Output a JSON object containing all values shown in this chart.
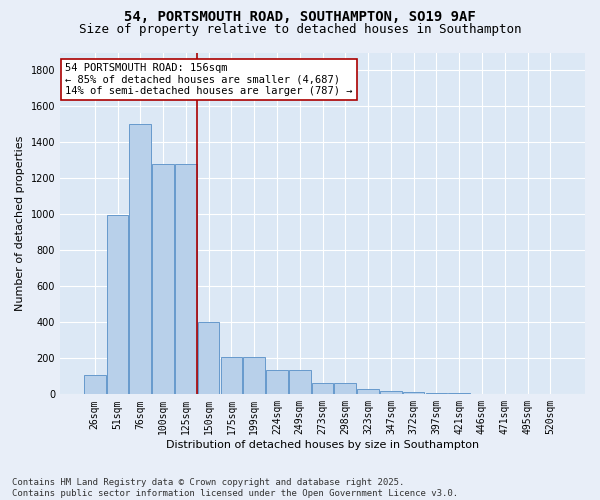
{
  "title_line1": "54, PORTSMOUTH ROAD, SOUTHAMPTON, SO19 9AF",
  "title_line2": "Size of property relative to detached houses in Southampton",
  "xlabel": "Distribution of detached houses by size in Southampton",
  "ylabel": "Number of detached properties",
  "categories": [
    "26sqm",
    "51sqm",
    "76sqm",
    "100sqm",
    "125sqm",
    "150sqm",
    "175sqm",
    "199sqm",
    "224sqm",
    "249sqm",
    "273sqm",
    "298sqm",
    "323sqm",
    "347sqm",
    "372sqm",
    "397sqm",
    "421sqm",
    "446sqm",
    "471sqm",
    "495sqm",
    "520sqm"
  ],
  "values": [
    105,
    995,
    1500,
    1280,
    1280,
    400,
    210,
    210,
    135,
    135,
    65,
    65,
    30,
    20,
    15,
    10,
    10,
    0,
    0,
    0,
    0
  ],
  "bar_color": "#b8d0ea",
  "bar_edge_color": "#6699cc",
  "highlight_bar_index": -1,
  "vline_position": 4.5,
  "vline_color": "#aa0000",
  "annotation_text": "54 PORTSMOUTH ROAD: 156sqm\n← 85% of detached houses are smaller (4,687)\n14% of semi-detached houses are larger (787) →",
  "annotation_box_color": "#ffffff",
  "annotation_box_edge_color": "#aa0000",
  "ylim": [
    0,
    1900
  ],
  "yticks": [
    0,
    200,
    400,
    600,
    800,
    1000,
    1200,
    1400,
    1600,
    1800
  ],
  "plot_bg_color": "#dce8f5",
  "grid_color": "#ffffff",
  "footer_line1": "Contains HM Land Registry data © Crown copyright and database right 2025.",
  "footer_line2": "Contains public sector information licensed under the Open Government Licence v3.0.",
  "title_fontsize": 10,
  "subtitle_fontsize": 9,
  "axis_label_fontsize": 8,
  "tick_fontsize": 7,
  "annotation_fontsize": 7.5,
  "footer_fontsize": 6.5
}
